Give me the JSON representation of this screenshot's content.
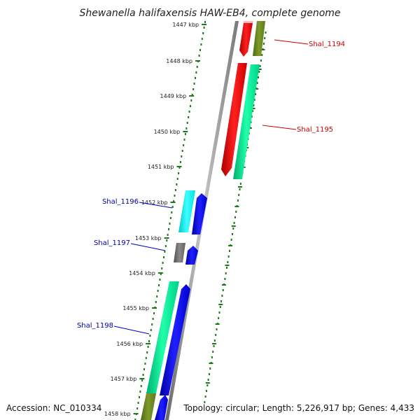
{
  "title": "Shewanella halifaxensis HAW-EB4, complete genome",
  "accession_text": "Accession: NC_010334",
  "summary_text": "Topology: circular; Length: 5,226,917 bp; Genes: 4,433",
  "ticks": [
    "1447 kbp",
    "1448 kbp",
    "1449 kbp",
    "1450 kbp",
    "1451 kbp",
    "1452 kbp",
    "1453 kbp",
    "1454 kbp",
    "1455 kbp",
    "1456 kbp",
    "1457 kbp",
    "1458 kbp"
  ],
  "genes": [
    {
      "label": "Shal_1194",
      "color": "#cc0000"
    },
    {
      "label": "Shal_1195",
      "color": "#cc0000"
    },
    {
      "label": "Shal_1196",
      "color": "#0000aa"
    },
    {
      "label": "Shal_1197",
      "color": "#0000aa"
    },
    {
      "label": "Shal_1198",
      "color": "#0000aa"
    }
  ],
  "colors": {
    "red": "#ff0000",
    "olive": "#6b8e23",
    "spring_green": "#00ee99",
    "cyan": "#00ffff",
    "blue": "#0000ee",
    "gray": "#707070",
    "pink": "#ffb0b0",
    "backbone": "#9a9a9a",
    "tick_green": "#1a7a1a"
  }
}
